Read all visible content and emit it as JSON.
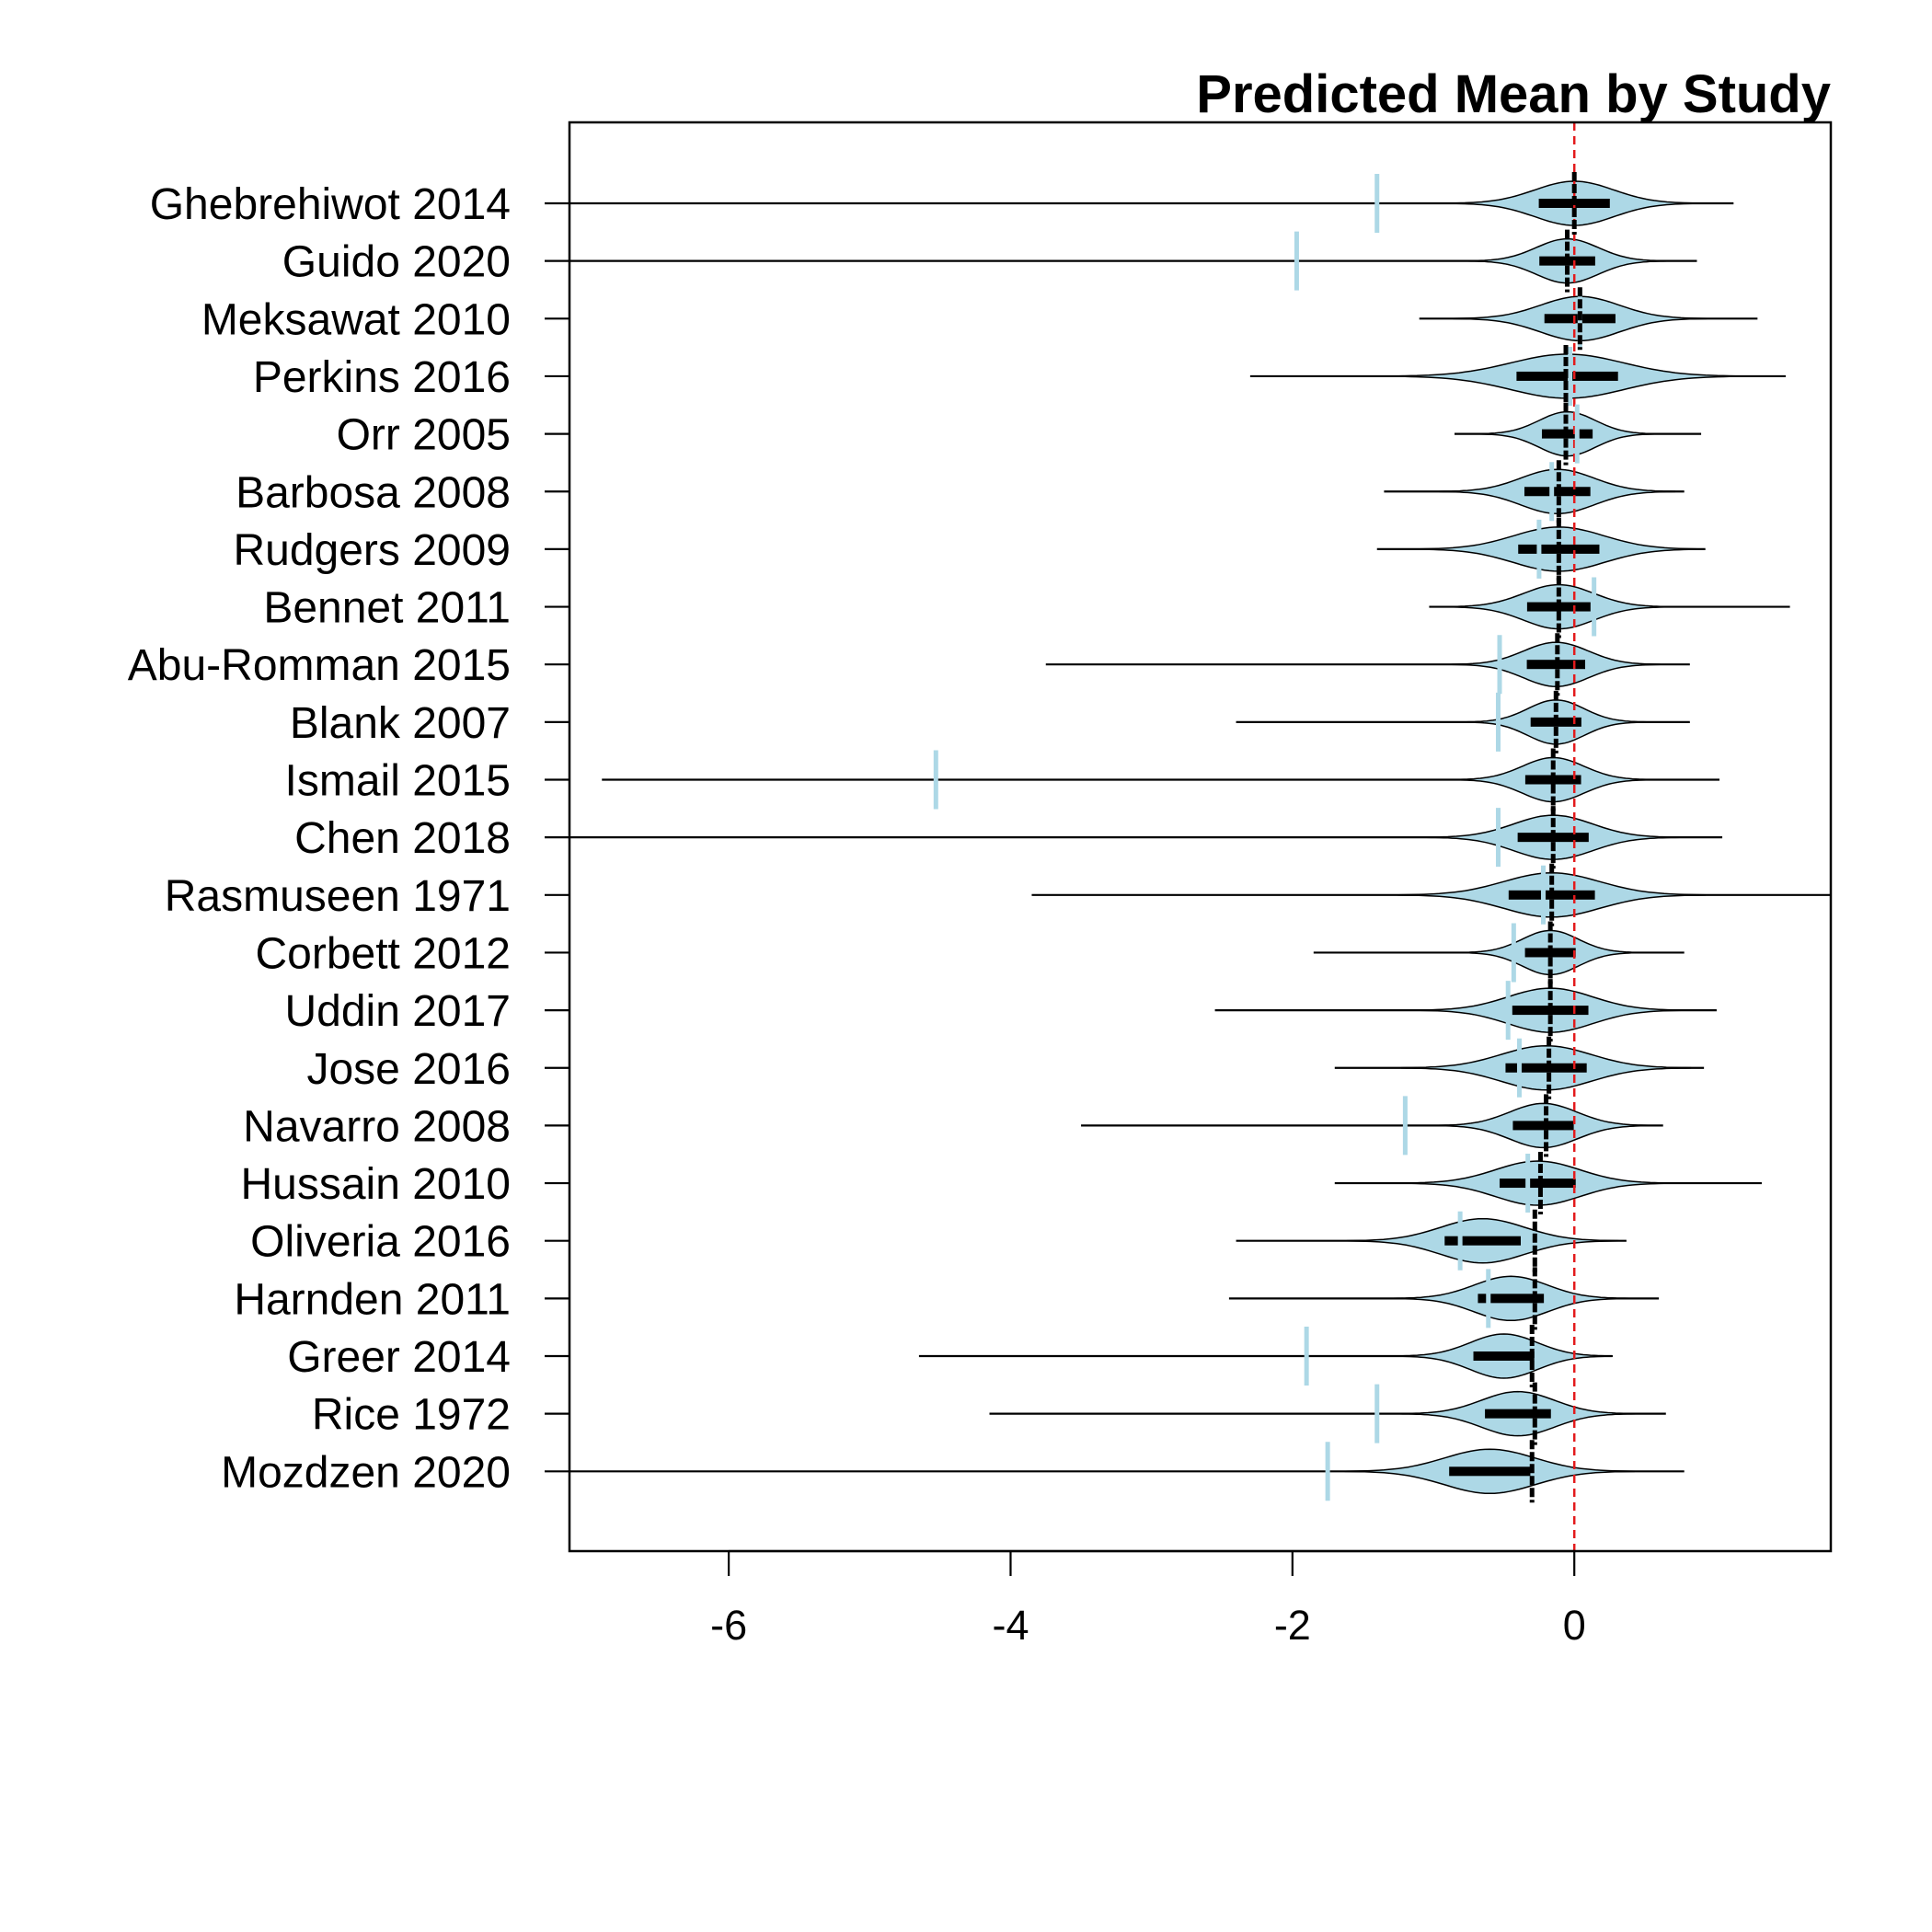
{
  "chart_data": {
    "type": "violin",
    "title": "Predicted Mean by Study",
    "xlabel": "",
    "ylabel": "",
    "xlim": [
      -7.13,
      1.82
    ],
    "x_ticks": [
      -6,
      -4,
      -2,
      0
    ],
    "x_tick_labels": [
      "-6",
      "-4",
      "-2",
      "0"
    ],
    "reference_line": {
      "x": 0,
      "style": "dashed",
      "color": "#e31a1c"
    },
    "colors": {
      "violin_fill": "#add8e6",
      "observed_marker": "#add8e6",
      "predicted_mean": "#000000",
      "outline": "#000000"
    },
    "studies": [
      {
        "name": "Ghebrehiwot 2014",
        "mean": 0.0,
        "observed": -1.4,
        "range": [
          -7.13,
          1.13
        ],
        "center": 0.0,
        "spread": 0.28
      },
      {
        "name": "Guido 2020",
        "mean": -0.05,
        "observed": -1.97,
        "range": [
          -7.13,
          0.87
        ],
        "center": -0.05,
        "spread": 0.22
      },
      {
        "name": "Meksawat 2010",
        "mean": 0.04,
        "observed": 0.04,
        "range": [
          -1.1,
          1.3
        ],
        "center": 0.04,
        "spread": 0.28
      },
      {
        "name": "Perkins 2016",
        "mean": -0.06,
        "observed": -0.03,
        "range": [
          -2.3,
          1.5
        ],
        "center": -0.05,
        "spread": 0.4
      },
      {
        "name": "Orr 2005",
        "mean": -0.06,
        "observed": 0.02,
        "range": [
          -0.85,
          0.9
        ],
        "center": -0.05,
        "spread": 0.2
      },
      {
        "name": "Barbosa 2008",
        "mean": -0.11,
        "observed": -0.16,
        "range": [
          -1.35,
          0.78
        ],
        "center": -0.12,
        "spread": 0.26
      },
      {
        "name": "Rudgers 2009",
        "mean": -0.11,
        "observed": -0.25,
        "range": [
          -1.4,
          0.93
        ],
        "center": -0.11,
        "spread": 0.32
      },
      {
        "name": "Bennet 2011",
        "mean": -0.11,
        "observed": 0.14,
        "range": [
          -1.03,
          1.53
        ],
        "center": -0.11,
        "spread": 0.25
      },
      {
        "name": "Abu-Romman 2015",
        "mean": -0.12,
        "observed": -0.53,
        "range": [
          -3.75,
          0.82
        ],
        "center": -0.13,
        "spread": 0.23
      },
      {
        "name": "Blank 2007",
        "mean": -0.13,
        "observed": -0.54,
        "range": [
          -2.4,
          0.82
        ],
        "center": -0.13,
        "spread": 0.2
      },
      {
        "name": "Ismail 2015",
        "mean": -0.15,
        "observed": -4.53,
        "range": [
          -6.9,
          1.03
        ],
        "center": -0.15,
        "spread": 0.22
      },
      {
        "name": "Chen 2018",
        "mean": -0.15,
        "observed": -0.54,
        "range": [
          -7.13,
          1.05
        ],
        "center": -0.15,
        "spread": 0.28
      },
      {
        "name": "Rasmuseen 1971",
        "mean": -0.16,
        "observed": -0.22,
        "range": [
          -3.85,
          1.82
        ],
        "center": -0.16,
        "spread": 0.34
      },
      {
        "name": "Corbett 2012",
        "mean": -0.17,
        "observed": -0.43,
        "range": [
          -1.85,
          0.78
        ],
        "center": -0.17,
        "spread": 0.2
      },
      {
        "name": "Uddin 2017",
        "mean": -0.17,
        "observed": -0.47,
        "range": [
          -2.55,
          1.01
        ],
        "center": -0.17,
        "spread": 0.3
      },
      {
        "name": "Jose 2016",
        "mean": -0.18,
        "observed": -0.39,
        "range": [
          -1.7,
          0.92
        ],
        "center": -0.2,
        "spread": 0.32
      },
      {
        "name": "Navarro 2008",
        "mean": -0.2,
        "observed": -1.2,
        "range": [
          -3.5,
          0.63
        ],
        "center": -0.22,
        "spread": 0.24
      },
      {
        "name": "Hussain 2010",
        "mean": -0.24,
        "observed": -0.33,
        "range": [
          -1.7,
          1.33
        ],
        "center": -0.26,
        "spread": 0.3
      },
      {
        "name": "Oliveria 2016",
        "mean": -0.28,
        "observed": -0.81,
        "range": [
          -2.4,
          0.37
        ],
        "center": -0.65,
        "spread": 0.3
      },
      {
        "name": "Harnden 2011",
        "mean": -0.28,
        "observed": -0.61,
        "range": [
          -2.45,
          0.6
        ],
        "center": -0.45,
        "spread": 0.26
      },
      {
        "name": "Greer 2014",
        "mean": -0.3,
        "observed": -1.9,
        "range": [
          -4.65,
          0.27
        ],
        "center": -0.5,
        "spread": 0.24
      },
      {
        "name": "Rice 1972",
        "mean": -0.28,
        "observed": -1.4,
        "range": [
          -4.15,
          0.65
        ],
        "center": -0.4,
        "spread": 0.26
      },
      {
        "name": "Mozdzen 2020",
        "mean": -0.3,
        "observed": -1.75,
        "range": [
          -7.13,
          0.78
        ],
        "center": -0.6,
        "spread": 0.32
      }
    ]
  }
}
